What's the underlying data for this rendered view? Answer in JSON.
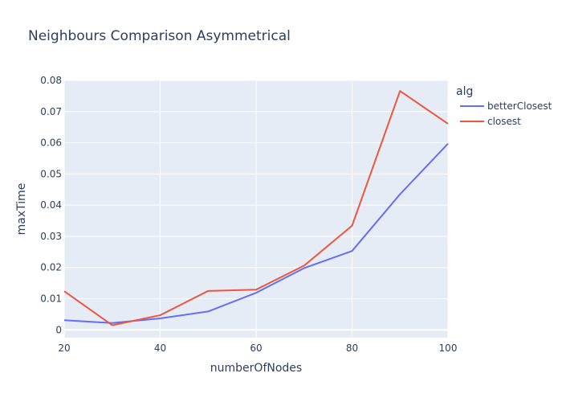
{
  "chart_data": {
    "type": "line",
    "title": "Neighbours Comparison Asymmetrical",
    "xlabel": "numberOfNodes",
    "ylabel": "maxTime",
    "xlim": [
      20,
      100
    ],
    "ylim": [
      -0.0025,
      0.08
    ],
    "x_ticks": [
      20,
      40,
      60,
      80,
      100
    ],
    "x_tick_labels": [
      "20",
      "40",
      "60",
      "80",
      "100"
    ],
    "y_ticks": [
      0,
      0.01,
      0.02,
      0.03,
      0.04,
      0.05,
      0.06,
      0.07,
      0.08
    ],
    "y_tick_labels": [
      "0",
      "0.01",
      "0.02",
      "0.03",
      "0.04",
      "0.05",
      "0.06",
      "0.07",
      "0.08"
    ],
    "grid": true,
    "legend": {
      "title": "alg",
      "placement": "right"
    },
    "background_color": "#e5ecf6",
    "grid_color": "#ffffff",
    "series": [
      {
        "name": "betterClosest",
        "color": "#636efa",
        "x": [
          20,
          30,
          40,
          50,
          60,
          70,
          80,
          90,
          100
        ],
        "values": [
          0.0031,
          0.0022,
          0.0037,
          0.0059,
          0.0119,
          0.0198,
          0.0253,
          0.0435,
          0.0597
        ]
      },
      {
        "name": "closest",
        "color": "#ef553b",
        "x": [
          20,
          30,
          40,
          50,
          60,
          70,
          80,
          90,
          100
        ],
        "values": [
          0.0124,
          0.0015,
          0.0047,
          0.0125,
          0.0129,
          0.0206,
          0.0334,
          0.0766,
          0.0661
        ]
      }
    ]
  }
}
